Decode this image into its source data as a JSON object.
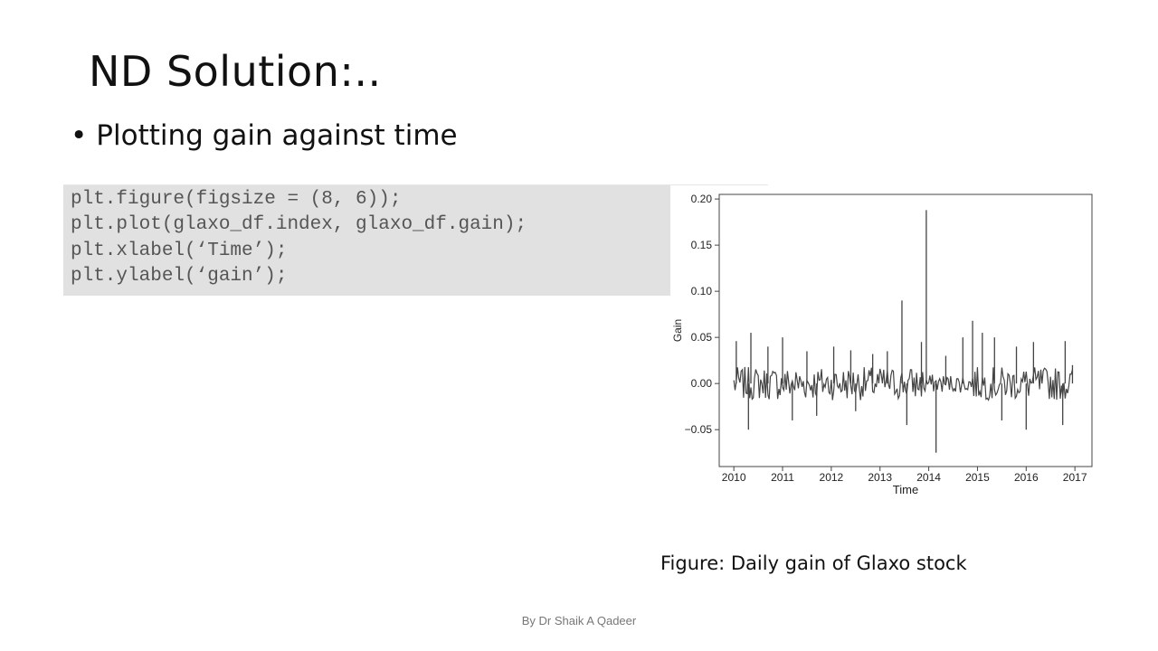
{
  "slide": {
    "title": "ND Solution:..",
    "bullet": "Plotting gain against time",
    "caption": "Figure: Daily gain of Glaxo stock",
    "footer": "By Dr Shaik A Qadeer"
  },
  "code": {
    "lines": [
      "plt.figure(figsize = (8, 6));",
      "plt.plot(glaxo_df.index, glaxo_df.gain);",
      "plt.xlabel(‘Time’);",
      "plt.ylabel(‘gain’);"
    ]
  },
  "chart_data": {
    "type": "line",
    "title": "",
    "xlabel": "Time",
    "ylabel": "Gain",
    "xlim": [
      2009.7,
      2017.35
    ],
    "ylim": [
      -0.09,
      0.205
    ],
    "x_ticks": [
      "2010",
      "2011",
      "2012",
      "2013",
      "2014",
      "2015",
      "2016",
      "2017"
    ],
    "y_ticks": [
      "0.20",
      "0.15",
      "0.10",
      "0.05",
      "0.00",
      "−0.05"
    ],
    "grid": false,
    "line_color": "#444444",
    "x_start": 2010.0,
    "x_end": 2016.95,
    "points_per_year": 40,
    "base_noise": 0.018,
    "spikes": [
      [
        2010.05,
        0.046
      ],
      [
        2010.35,
        0.055
      ],
      [
        2010.3,
        -0.05
      ],
      [
        2010.7,
        0.04
      ],
      [
        2011.0,
        0.05
      ],
      [
        2011.2,
        -0.04
      ],
      [
        2011.5,
        0.035
      ],
      [
        2011.7,
        -0.035
      ],
      [
        2012.05,
        0.04
      ],
      [
        2012.4,
        0.036
      ],
      [
        2012.5,
        -0.03
      ],
      [
        2012.85,
        0.032
      ],
      [
        2013.15,
        0.035
      ],
      [
        2013.45,
        0.09
      ],
      [
        2013.55,
        -0.045
      ],
      [
        2013.85,
        0.045
      ],
      [
        2013.95,
        0.188
      ],
      [
        2014.15,
        -0.075
      ],
      [
        2014.35,
        0.03
      ],
      [
        2014.7,
        0.05
      ],
      [
        2014.9,
        0.068
      ],
      [
        2015.1,
        0.055
      ],
      [
        2015.35,
        0.05
      ],
      [
        2015.5,
        -0.04
      ],
      [
        2015.8,
        0.04
      ],
      [
        2016.0,
        -0.05
      ],
      [
        2016.15,
        0.045
      ],
      [
        2016.8,
        0.046
      ],
      [
        2016.75,
        -0.045
      ],
      [
        2016.95,
        0.02
      ]
    ],
    "quiet_period": [
      2013.95,
      2014.9
    ]
  }
}
